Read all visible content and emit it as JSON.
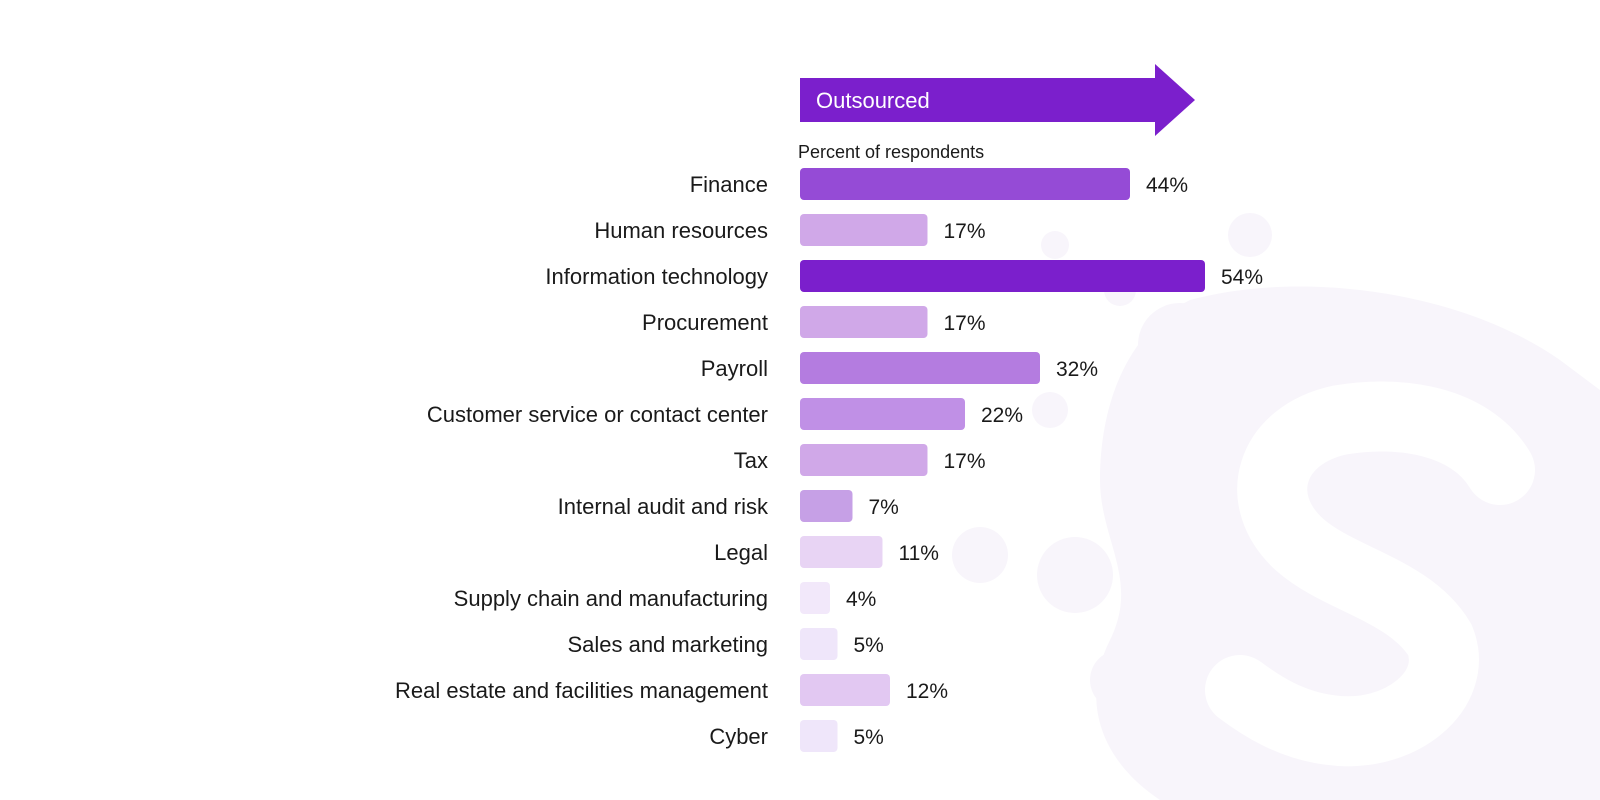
{
  "banner": {
    "label": "Outsourced",
    "color": "#7b1fcc"
  },
  "watermark": {
    "icon": "s-logo-watermark-icon",
    "color": "#f7f4fa"
  },
  "chart_data": {
    "type": "bar",
    "orientation": "horizontal",
    "title": "Outsourced",
    "subtitle": "Percent of respondents",
    "value_suffix": "%",
    "xlim": [
      0,
      54
    ],
    "grid": false,
    "categories": [
      "Finance",
      "Human resources",
      "Information technology",
      "Procurement",
      "Payroll",
      "Customer service or contact center",
      "Tax",
      "Internal audit and risk",
      "Legal",
      "Supply chain and manufacturing",
      "Sales and marketing",
      "Real estate and facilities management",
      "Cyber"
    ],
    "values": [
      44,
      17,
      54,
      17,
      32,
      22,
      17,
      7,
      11,
      4,
      5,
      12,
      5
    ],
    "colors": [
      "#954bd6",
      "#d0a8e8",
      "#7b1fcc",
      "#d0a8e8",
      "#b47ce0",
      "#c090e6",
      "#d0a8e8",
      "#c6a0e6",
      "#e8d4f4",
      "#f2e8fa",
      "#efe6fa",
      "#e2c8f2",
      "#efe6fa"
    ]
  }
}
